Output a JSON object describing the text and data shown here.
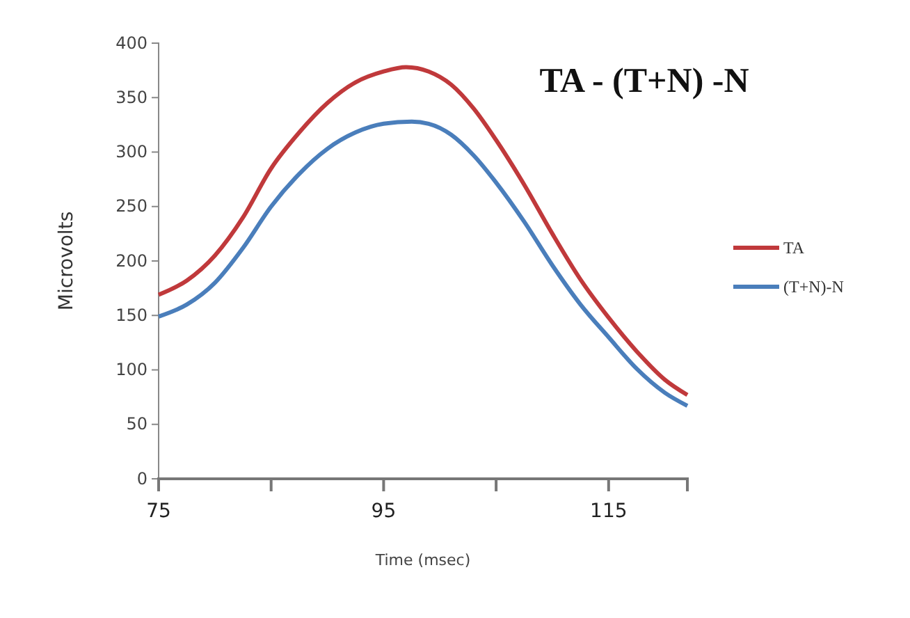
{
  "chart_data": {
    "type": "line",
    "title": "TA - (T+N) -N",
    "xlabel": "Time (msec)",
    "ylabel": "Microvolts",
    "xlim": [
      75,
      122
    ],
    "xticks": [
      75,
      {
        "value": 85,
        "label": null
      },
      95,
      {
        "value": 105,
        "label": null
      },
      115,
      {
        "value": 122,
        "label": null
      }
    ],
    "ylim": [
      0,
      400
    ],
    "yticks": [
      0,
      50,
      100,
      150,
      200,
      250,
      300,
      350,
      400
    ],
    "grid": false,
    "legend": "right",
    "marker": "none",
    "line_style": "solid",
    "series": [
      {
        "name": "TA",
        "color": "#c0393b",
        "x": [
          75,
          77.5,
          80,
          82.5,
          85,
          87.5,
          90,
          92.5,
          95,
          97,
          99,
          101,
          103,
          105,
          107.5,
          110,
          112.5,
          115,
          117.5,
          120,
          122
        ],
        "values": [
          169,
          182,
          205,
          240,
          285,
          318,
          345,
          364,
          374,
          378,
          374,
          362,
          340,
          311,
          270,
          225,
          183,
          148,
          117,
          91,
          77
        ]
      },
      {
        "name": "(T+N)-N",
        "color": "#4a7ebb",
        "x": [
          75,
          77.5,
          80,
          82.5,
          85,
          87.5,
          90,
          92.5,
          95,
          97.5,
          99,
          101,
          103,
          105,
          107.5,
          110,
          112.5,
          115,
          117.5,
          120,
          122
        ],
        "values": [
          149,
          160,
          180,
          212,
          250,
          280,
          303,
          318,
          326,
          328,
          326,
          316,
          297,
          272,
          236,
          196,
          160,
          130,
          101,
          79,
          67
        ]
      }
    ]
  }
}
